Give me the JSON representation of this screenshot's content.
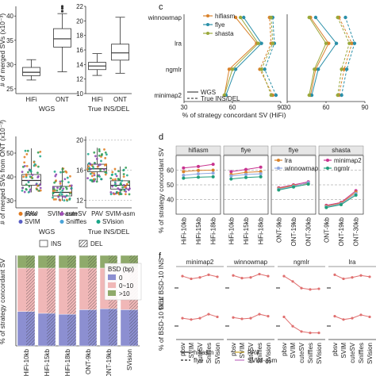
{
  "panel_labels": [
    "c",
    "d",
    "f"
  ],
  "colors": {
    "hifiasm": "#d9822b",
    "flye": "#2a8fa8",
    "shasta": "#9aa83a",
    "lra": "#d9822b",
    "winnowmap": "#8fa8e0",
    "minimap2": "#c8338f",
    "ngmlr": "#1f9e7a",
    "bsd0": "#8c8fd1",
    "bsd010": "#f0b7b7",
    "bsd10": "#8faa6b",
    "pbsv": "#e07a1f",
    "cuteSV": "#a14fb8",
    "SVIM": "#5a5ec4",
    "Sniffles": "#4aa3d8",
    "SVision": "#1aa688",
    "pts_purple": "#8a44b0",
    "pts_teal": "#1aa688",
    "pts_green": "#2e9b50",
    "pts_orange": "#e07a1f",
    "dashed": "#888888"
  },
  "chart_data": [
    {
      "id": "a",
      "type": "box",
      "ylabel": "# of merged SVs (x10⁻³)",
      "groups": [
        {
          "group_label": "WGS",
          "yticks": [
            "25",
            "30",
            "35",
            "40"
          ],
          "ylim": [
            24,
            42
          ],
          "boxes": [
            {
              "category": "HiFi",
              "whislo": 26.8,
              "q1": 27.7,
              "med": 28.4,
              "q3": 29.4,
              "whishi": 31.0
            },
            {
              "category": "ONT",
              "whislo": 28.5,
              "q1": 33.6,
              "med": 35.3,
              "q3": 37.4,
              "whishi": 40.5,
              "fliers": [
                41.0,
                41.6,
                42.0
              ]
            }
          ]
        },
        {
          "group_label": "True INS/DEL",
          "yticks": [
            "10",
            "12",
            "14",
            "16",
            "18",
            "20",
            "22"
          ],
          "ylim": [
            10,
            22
          ],
          "boxes": [
            {
              "category": "HiFi",
              "whislo": 12.5,
              "q1": 13.3,
              "med": 13.8,
              "q3": 14.3,
              "whishi": 15.5
            },
            {
              "category": "ONT",
              "whislo": 12.8,
              "q1": 14.6,
              "med": 15.6,
              "q3": 16.8,
              "whishi": 20.5
            }
          ]
        }
      ]
    },
    {
      "id": "b",
      "type": "box",
      "ylabel": "# of merged SVs from ONT (x10⁻³)",
      "legend": [
        "pbsv",
        "cuteSV",
        "SVIM",
        "Sniffles",
        "SVision"
      ],
      "groups": [
        {
          "group_label": "WGS",
          "yticks": [
            "30",
            "40",
            "50"
          ],
          "ylim": [
            27,
            57
          ],
          "boxes": [
            {
              "category": "PAV",
              "whislo": 33.5,
              "q1": 36.5,
              "med": 38.5,
              "q3": 41.0,
              "whishi": 52.0
            },
            {
              "category": "SVIM-asm",
              "whislo": 30.0,
              "q1": 32.0,
              "med": 33.5,
              "q3": 36.0,
              "whishi": 44.0
            }
          ]
        },
        {
          "group_label": "True INS/DEL",
          "yticks": [
            "12",
            "16",
            "20"
          ],
          "ylim": [
            11,
            20.5
          ],
          "boxes": [
            {
              "category": "PAV",
              "whislo": 14.5,
              "q1": 15.8,
              "med": 16.2,
              "q3": 16.8,
              "whishi": 19.0
            },
            {
              "category": "SVIM-asm",
              "whislo": 12.8,
              "q1": 13.5,
              "med": 14.0,
              "q3": 14.6,
              "whishi": 16.5
            }
          ]
        }
      ]
    },
    {
      "id": "c",
      "type": "line",
      "xlabel": "% of strategy concordant SV (HiFi)",
      "xlabel2": "",
      "xticks": [
        "30",
        "60",
        "90"
      ],
      "xlim": [
        30,
        90
      ],
      "categories": [
        "minimap2",
        "ngmlr",
        "lra",
        "winnowmap"
      ],
      "legend_assembler": [
        "hifiasm",
        "flye",
        "shasta"
      ],
      "legend_style": [
        "WGS",
        "True INS/DEL"
      ],
      "left": [
        {
          "name": "hifiasm",
          "style": "solid",
          "values": [
            55,
            58,
            75,
            62
          ]
        },
        {
          "name": "hifiasm",
          "style": "dashed",
          "values": [
            85,
            77,
            84,
            83
          ]
        },
        {
          "name": "flye",
          "style": "solid",
          "values": [
            56,
            62,
            78,
            67
          ]
        },
        {
          "name": "flye",
          "style": "dashed",
          "values": [
            87,
            80,
            86,
            85
          ]
        },
        {
          "name": "shasta",
          "style": "solid",
          "values": [
            55,
            60,
            76,
            65
          ]
        },
        {
          "name": "shasta",
          "style": "dashed",
          "values": [
            84,
            78,
            85,
            84
          ]
        }
      ],
      "right_xticks": [
        "30",
        "60",
        "90"
      ],
      "right": [
        {
          "name": "hifiasm",
          "style": "solid",
          "values": [
            48,
            52,
            62,
            48
          ]
        },
        {
          "name": "hifiasm",
          "style": "dashed",
          "values": [
            70,
            74,
            80,
            70
          ]
        },
        {
          "name": "flye",
          "style": "solid",
          "values": [
            49,
            54,
            68,
            52
          ]
        },
        {
          "name": "flye",
          "style": "dashed",
          "values": [
            72,
            76,
            82,
            75
          ]
        },
        {
          "name": "shasta",
          "style": "solid",
          "values": [
            47,
            51,
            60,
            47
          ]
        },
        {
          "name": "shasta",
          "style": "dashed",
          "values": [
            69,
            72,
            78,
            69
          ]
        }
      ]
    },
    {
      "id": "d",
      "type": "line",
      "ylabel": "% of strategy concordant SV",
      "ylim": [
        30,
        70
      ],
      "yticks": [
        "40",
        "50",
        "60"
      ],
      "facets": [
        {
          "title": "hifiasm",
          "categories": [
            "HiFi-10kb",
            "HiFi-15kb",
            "HiFi-18kb"
          ],
          "series": [
            {
              "name": "minimap2",
              "values": [
                61.5,
                62.5,
                64.0
              ]
            },
            {
              "name": "lra",
              "values": [
                59.0,
                59.8,
                60.0
              ]
            },
            {
              "name": "winnowmap",
              "values": [
                56.5,
                57.5,
                58.0
              ]
            },
            {
              "name": "ngmlr",
              "values": [
                54.5,
                55.2,
                55.5
              ]
            }
          ]
        },
        {
          "title": "flye",
          "categories": [
            "HiFi-10kb",
            "HiFi-15kb",
            "HiFi-18kb"
          ],
          "series": [
            {
              "name": "minimap2",
              "values": [
                59.0,
                60.5,
                62.0
              ]
            },
            {
              "name": "lra",
              "values": [
                57.0,
                58.5,
                59.0
              ]
            },
            {
              "name": "winnowmap",
              "values": [
                56.0,
                57.0,
                57.5
              ]
            },
            {
              "name": "ngmlr",
              "values": [
                54.0,
                55.0,
                55.5
              ]
            }
          ]
        },
        {
          "title": "flye",
          "categories": [
            "ONT-9kb",
            "ONT-19kb",
            "ONT-30kb"
          ],
          "series": [
            {
              "name": "minimap2",
              "values": [
                48.0,
                50.0,
                52.0
              ]
            },
            {
              "name": "lra",
              "values": [
                47.5,
                49.5,
                51.0
              ]
            },
            {
              "name": "winnowmap",
              "values": [
                47.0,
                49.0,
                51.5
              ]
            },
            {
              "name": "ngmlr",
              "values": [
                46.5,
                48.5,
                50.5
              ]
            }
          ]
        },
        {
          "title": "shasta",
          "categories": [
            "ONT-9kb",
            "ONT-19kb",
            "ONT-30kb"
          ],
          "series": [
            {
              "name": "minimap2",
              "values": [
                36.0,
                38.0,
                46.0
              ]
            },
            {
              "name": "lra",
              "values": [
                35.5,
                37.5,
                45.0
              ]
            },
            {
              "name": "winnowmap",
              "values": [
                35.0,
                37.0,
                44.0
              ]
            },
            {
              "name": "ngmlr",
              "values": [
                34.5,
                36.5,
                43.0
              ]
            }
          ]
        }
      ],
      "legend": [
        "lra",
        "minimap2",
        "winnowmap",
        "ngmlr"
      ]
    },
    {
      "id": "e",
      "type": "bar",
      "ylabel": "% of strategy concordant SV",
      "legend_type": [
        "INS",
        "DEL"
      ],
      "legend_bsd_title": "BSD (bp)",
      "legend_bsd": [
        "0",
        "0~10",
        ">10"
      ],
      "categories": [
        "HiFi-10kb",
        "HiFi-15kb",
        "HiFi-18kb",
        "ONT-9kb",
        "ONT-19kb",
        "SVision"
      ],
      "stacks": [
        {
          "bsd0": 38,
          "bsd010": 48,
          "bsd10": 14
        },
        {
          "bsd0": 36,
          "bsd010": 50,
          "bsd10": 14
        },
        {
          "bsd0": 35,
          "bsd010": 51,
          "bsd10": 14
        },
        {
          "bsd0": 40,
          "bsd010": 46,
          "bsd10": 14
        },
        {
          "bsd0": 41,
          "bsd010": 45,
          "bsd10": 14
        },
        {
          "bsd0": 40,
          "bsd010": 46,
          "bsd10": 14
        }
      ]
    },
    {
      "id": "f",
      "type": "line",
      "ylabel_top": "% of BSD-10 INS",
      "ylabel_bottom": "% of BSD-10 DEL",
      "facets": [
        "minimap2",
        "winnowmap",
        "ngmlr",
        "lra"
      ],
      "categories": [
        "pbsv",
        "SVIM",
        "cuteSV",
        "Sniffles",
        "SVision"
      ],
      "legend": [
        "hifiasm",
        "flye",
        "PAV",
        "SVIM-asm"
      ],
      "ins": [
        [
          88,
          84,
          86,
          90,
          87
        ],
        [
          89,
          85,
          86,
          91,
          88
        ],
        [
          88,
          80,
          70,
          68,
          69
        ],
        [
          90,
          84,
          86,
          89,
          87
        ]
      ],
      "del": [
        [
          82,
          80,
          82,
          88,
          84
        ],
        [
          83,
          81,
          82,
          88,
          85
        ],
        [
          84,
          70,
          62,
          60,
          60
        ],
        [
          85,
          80,
          82,
          87,
          84
        ]
      ]
    }
  ]
}
